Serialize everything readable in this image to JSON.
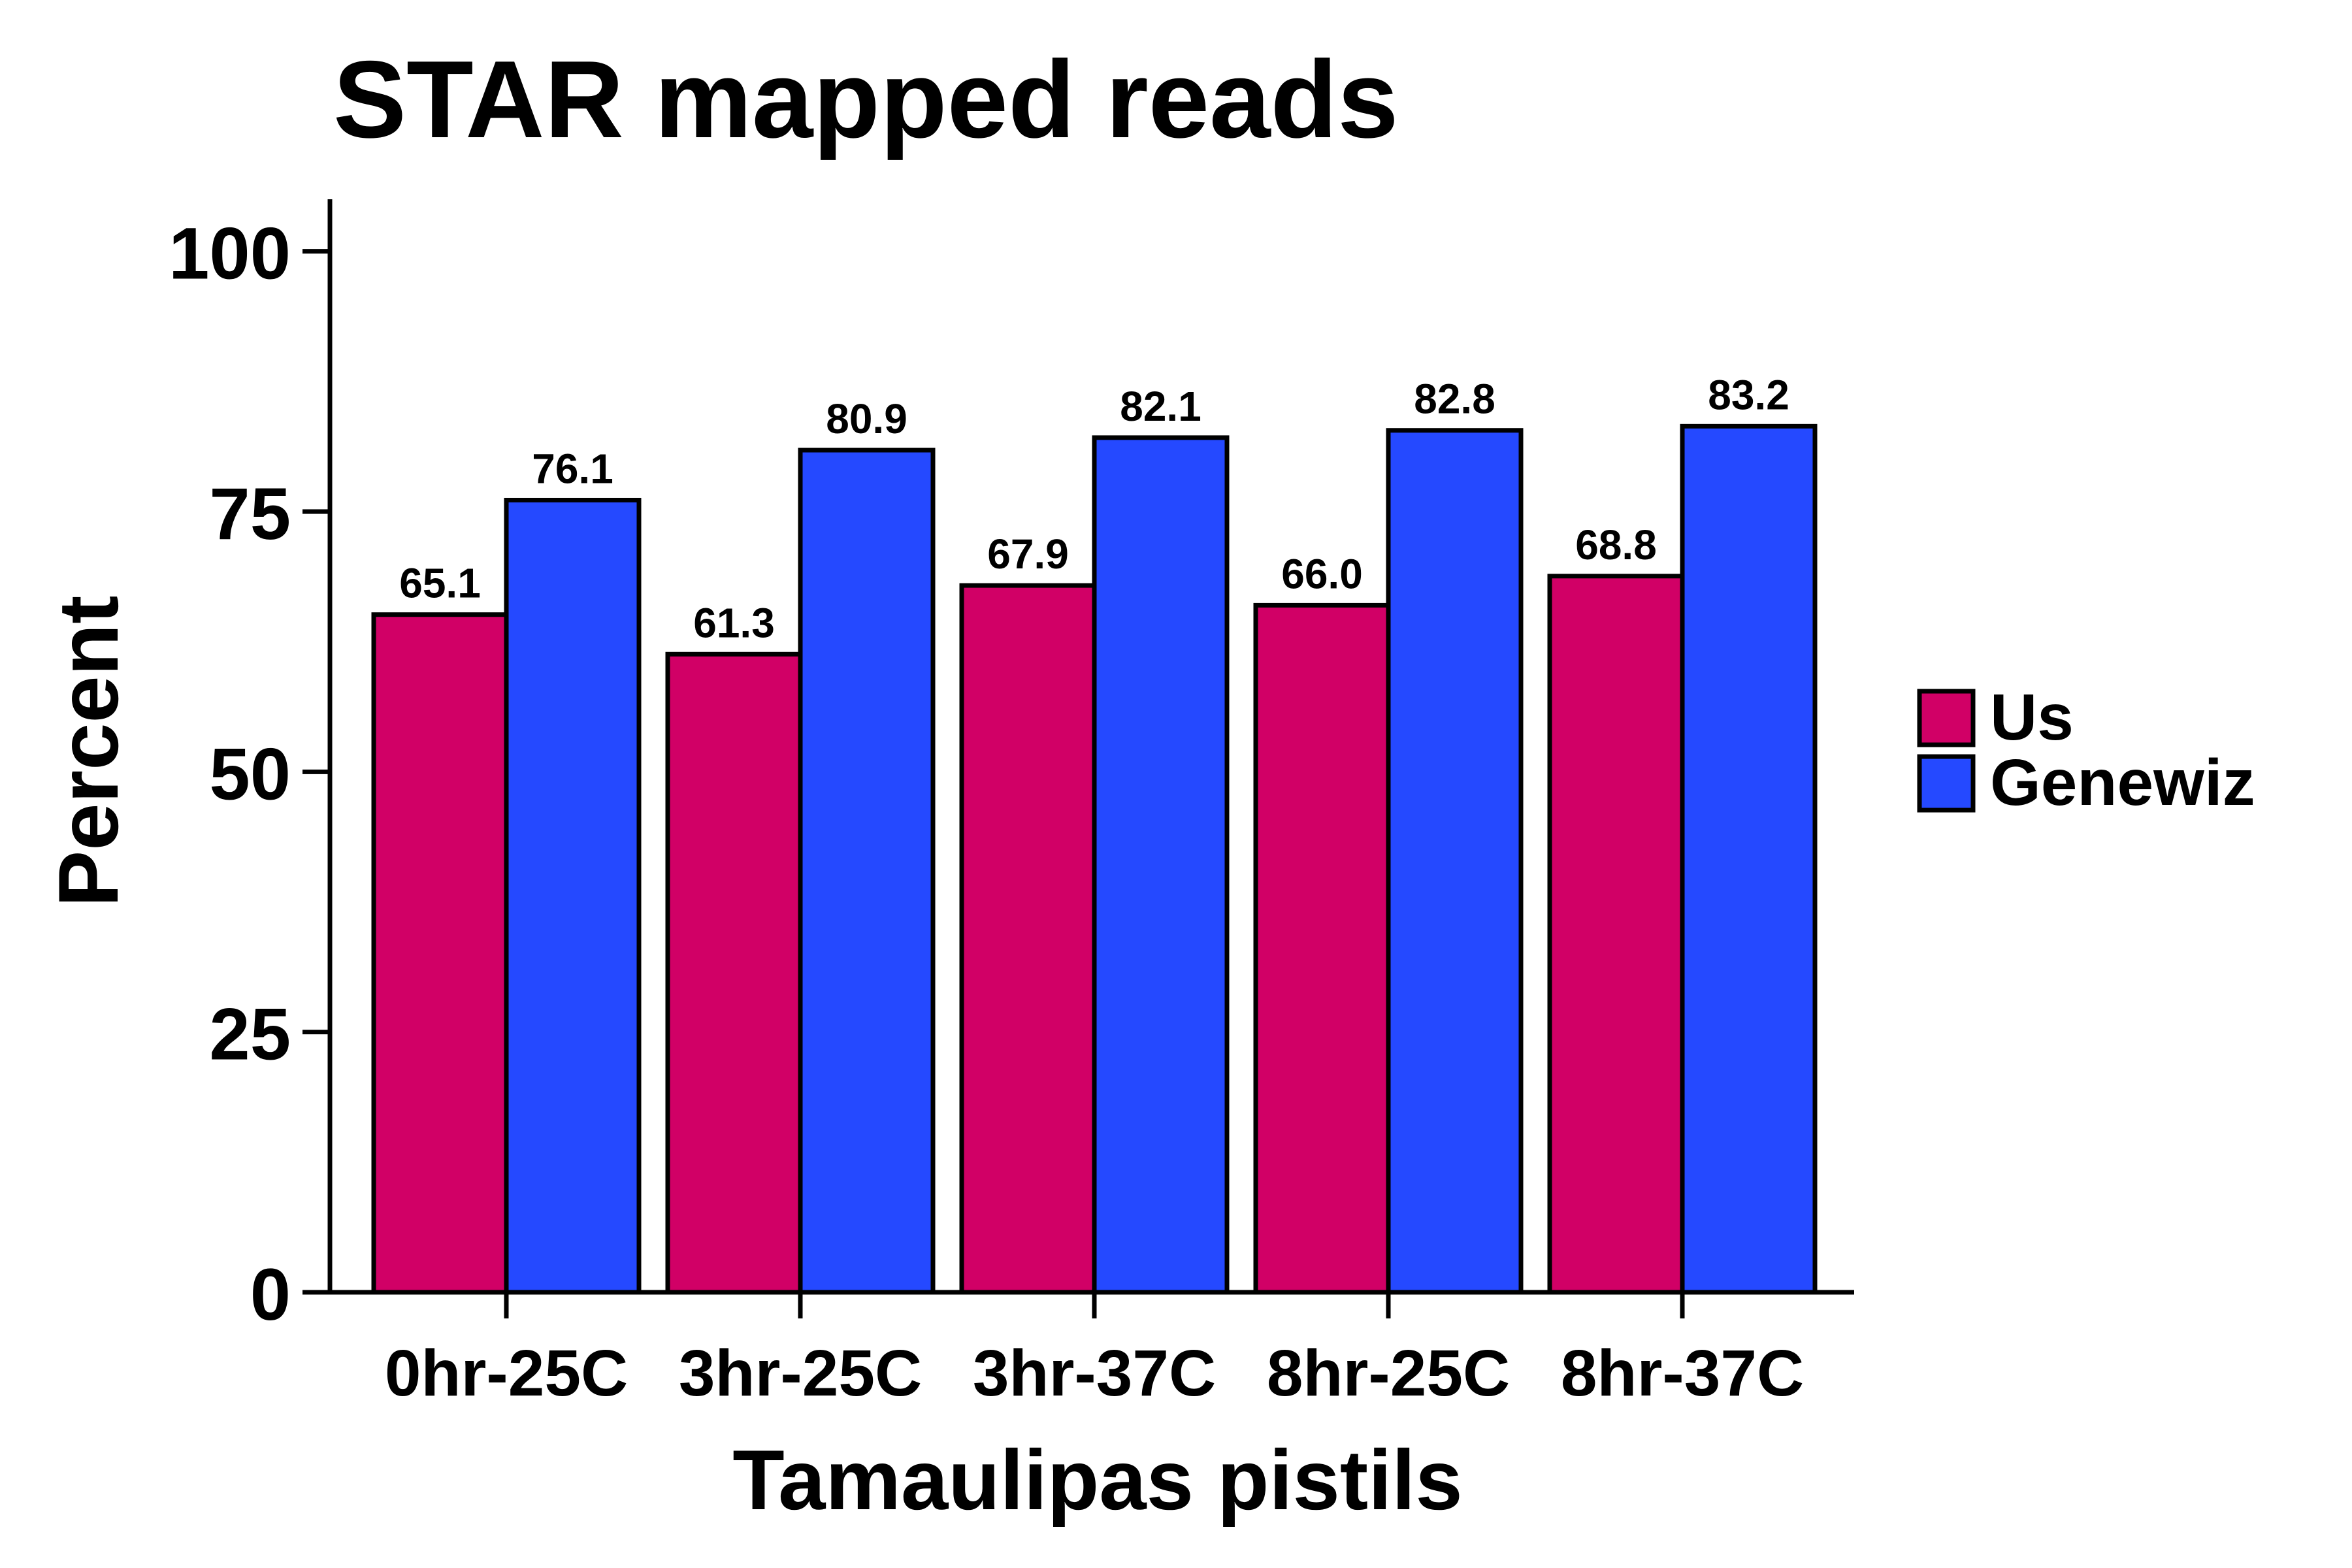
{
  "chart_data": {
    "type": "bar",
    "title": "STAR mapped reads",
    "xlabel": "Tamaulipas pistils",
    "ylabel": "Percent",
    "categories": [
      "0hr-25C",
      "3hr-25C",
      "3hr-37C",
      "8hr-25C",
      "8hr-37C"
    ],
    "series": [
      {
        "name": "Us",
        "color": "#d10066",
        "values": [
          65.1,
          61.3,
          67.9,
          66.0,
          68.8
        ],
        "labels": [
          "65.1",
          "61.3",
          "67.9",
          "66.0",
          "68.8"
        ]
      },
      {
        "name": "Genewiz",
        "color": "#2549ff",
        "values": [
          76.1,
          80.9,
          82.1,
          82.8,
          83.2
        ],
        "labels": [
          "76.1",
          "80.9",
          "82.1",
          "82.8",
          "83.2"
        ]
      }
    ],
    "ylim": [
      0,
      105
    ],
    "yticks": [
      0,
      25,
      50,
      75,
      100
    ],
    "grid": false,
    "legend_position": "right"
  }
}
